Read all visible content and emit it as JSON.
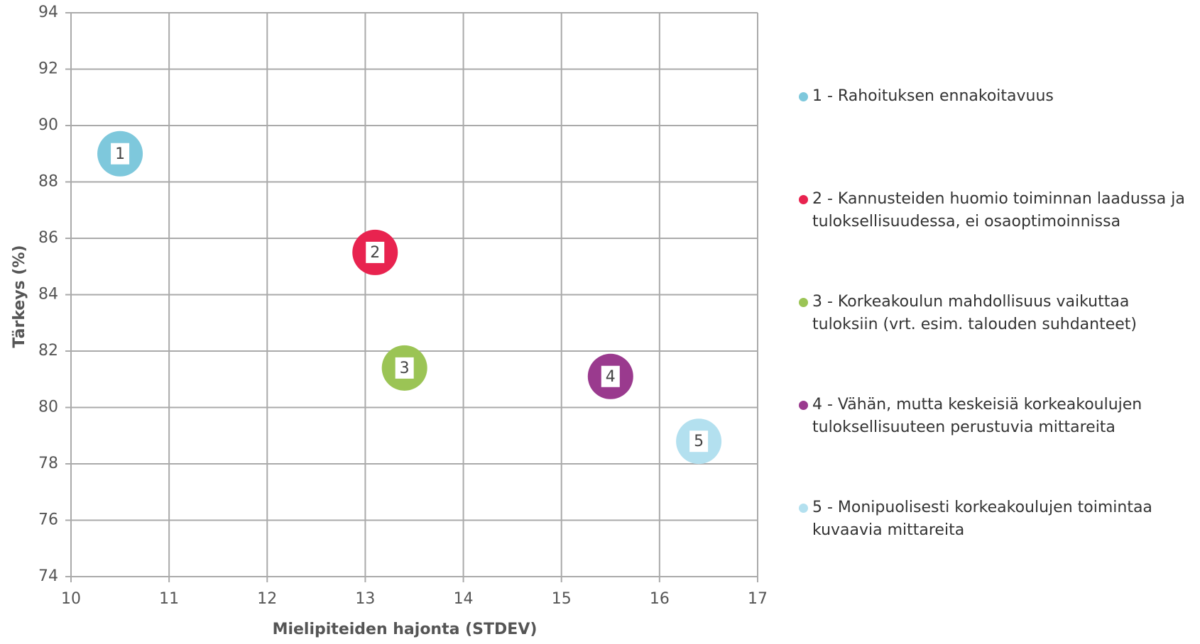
{
  "chart_data": {
    "type": "scatter",
    "xlabel": "Mielipiteiden hajonta (STDEV)",
    "ylabel": "Tärkeys (%)",
    "xlim": [
      10,
      17
    ],
    "xticks": [
      10,
      11,
      12,
      13,
      14,
      15,
      16,
      17
    ],
    "ylim": [
      74,
      94
    ],
    "yticks": [
      74,
      76,
      78,
      80,
      82,
      84,
      86,
      88,
      90,
      92,
      94
    ],
    "grid": true,
    "legend": "right",
    "series": [
      {
        "name": "1 - Rahoituksen ennakoitavuus",
        "color": "#7ec8dc",
        "x": [
          10.5
        ],
        "values": [
          89
        ],
        "labels": [
          "1"
        ]
      },
      {
        "name": "2 - Kannusteiden huomio toiminnan laadussa ja tuloksellisuudessa, ei osaoptimoinnissa",
        "color": "#e8234f",
        "x": [
          13.1
        ],
        "values": [
          85.5
        ],
        "labels": [
          "2"
        ]
      },
      {
        "name": "3 - Korkeakoulun mahdollisuus vaikuttaa tuloksiin (vrt. esim. talouden suhdanteet)",
        "color": "#9bc455",
        "x": [
          13.4
        ],
        "values": [
          81.4
        ],
        "labels": [
          "3"
        ]
      },
      {
        "name": "4 - Vähän, mutta keskeisiä korkeakoulujen tuloksellisuuteen perustuvia mittareita",
        "color": "#9a3a8e",
        "x": [
          15.5
        ],
        "values": [
          81.1
        ],
        "labels": [
          "4"
        ]
      },
      {
        "name": "5 - Monipuolisesti korkeakoulujen toimintaa kuvaavia mittareita",
        "color": "#b3e0ef",
        "x": [
          16.4
        ],
        "values": [
          78.8
        ],
        "labels": [
          "5"
        ]
      }
    ]
  }
}
